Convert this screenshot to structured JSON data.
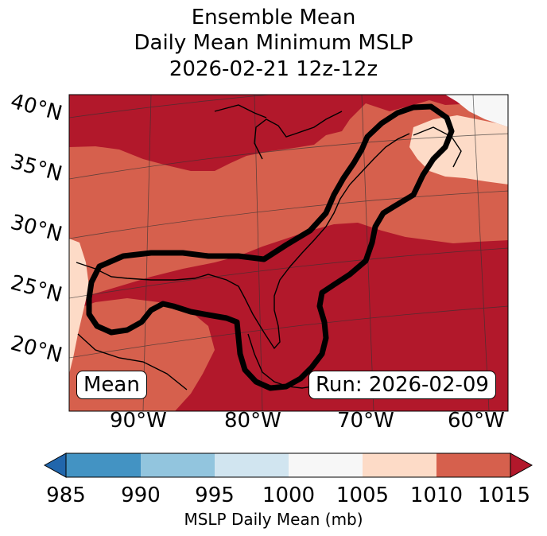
{
  "title_lines": [
    "Ensemble Mean",
    "Daily Mean Minimum MSLP",
    "2026-02-21 12z-12z"
  ],
  "lat_labels": [
    "40°N",
    "35°N",
    "30°N",
    "25°N",
    "20°N"
  ],
  "lon_labels": [
    "90°W",
    "80°W",
    "70°W",
    "60°W"
  ],
  "mean_label": "Mean",
  "run_label": "Run: 2026-02-09",
  "colorbar": {
    "label": "MSLP Daily Mean (mb)",
    "ticks": [
      "985",
      "990",
      "995",
      "1000",
      "1005",
      "1010",
      "1015"
    ],
    "colors": [
      "#4393c3",
      "#92c5de",
      "#d1e5f0",
      "#f7f7f7",
      "#fddbc7",
      "#d6604d",
      "#b2182b"
    ],
    "under_color": "#2166ac",
    "over_color": "#b2182b"
  },
  "colors": {
    "c1005": "#fddbc7",
    "c1010": "#d6604d",
    "c1015": "#b2182b",
    "c1000": "#f7f7f7",
    "contour": "#000000"
  }
}
